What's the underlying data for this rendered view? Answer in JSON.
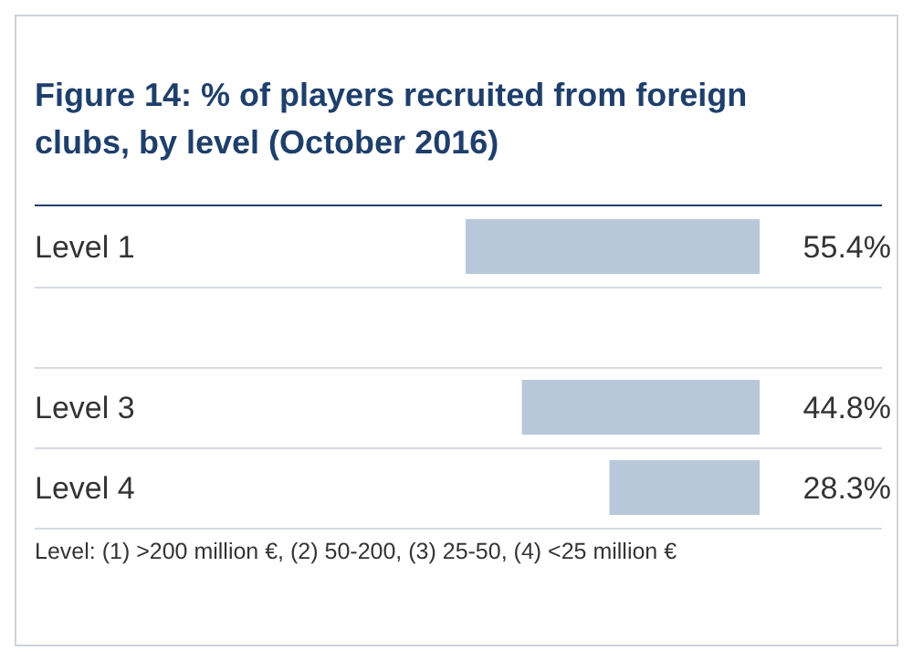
{
  "chart_data": {
    "type": "bar",
    "orientation": "horizontal",
    "title": "Figure 14: % of players recruited from foreign clubs, by level (October 2016)",
    "categories": [
      "Level 1",
      null,
      "Level 3",
      "Level 4"
    ],
    "values": [
      55.4,
      null,
      44.8,
      28.3
    ],
    "color": "#b8c8da",
    "data_labels": true,
    "value_labels": [
      "55.4%",
      null,
      "44.8%",
      "28.3%"
    ],
    "annotations": [
      "Level: (1) >200 million €, (2) 50-200, (3) 25-50, (4) <25 million €"
    ]
  }
}
